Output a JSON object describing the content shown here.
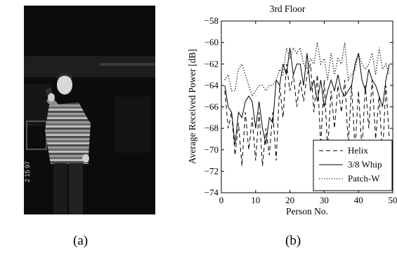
{
  "figure": {
    "caption_a": "(a)",
    "caption_b": "(b)",
    "photo_date_stamp": "2 15 97"
  },
  "chart_data": {
    "type": "line",
    "title": "3rd Floor",
    "xlabel": "Person No.",
    "ylabel": "Average Received Power [dB]",
    "xlim": [
      0,
      50
    ],
    "ylim": [
      -74,
      -58
    ],
    "xticks": [
      0,
      10,
      20,
      30,
      40,
      50
    ],
    "yticks": [
      -58,
      -60,
      -62,
      -64,
      -66,
      -68,
      -70,
      -72,
      -74
    ],
    "grid": false,
    "legend_position": "bottom-right",
    "series": [
      {
        "name": "Helix",
        "style": "dashed",
        "values": [
          [
            1,
            -64.5
          ],
          [
            2,
            -68
          ],
          [
            3,
            -66.5
          ],
          [
            4,
            -70.5
          ],
          [
            5,
            -67.5
          ],
          [
            6,
            -71.5
          ],
          [
            7,
            -66.5
          ],
          [
            8,
            -70
          ],
          [
            9,
            -67
          ],
          [
            10,
            -71
          ],
          [
            11,
            -66.5
          ],
          [
            12,
            -71.5
          ],
          [
            13,
            -68
          ],
          [
            14,
            -70.5
          ],
          [
            15,
            -66.5
          ],
          [
            16,
            -71
          ],
          [
            17,
            -64
          ],
          [
            18,
            -67
          ],
          [
            19,
            -62
          ],
          [
            20,
            -64.5
          ],
          [
            21,
            -63
          ],
          [
            22,
            -66
          ],
          [
            23,
            -63.5
          ],
          [
            24,
            -65.5
          ],
          [
            25,
            -63
          ],
          [
            26,
            -62
          ],
          [
            27,
            -66.5
          ],
          [
            28,
            -63
          ],
          [
            29,
            -69.5
          ],
          [
            30,
            -63.5
          ],
          [
            31,
            -70
          ],
          [
            32,
            -64.5
          ],
          [
            33,
            -68
          ],
          [
            34,
            -64
          ],
          [
            35,
            -66.5
          ],
          [
            36,
            -63.5
          ],
          [
            37,
            -69.5
          ],
          [
            38,
            -64
          ],
          [
            39,
            -70
          ],
          [
            40,
            -64.5
          ],
          [
            41,
            -70
          ],
          [
            42,
            -64
          ],
          [
            43,
            -68
          ],
          [
            44,
            -63.5
          ],
          [
            45,
            -69
          ],
          [
            46,
            -65
          ],
          [
            47,
            -70.5
          ],
          [
            48,
            -64
          ],
          [
            49,
            -69
          ]
        ]
      },
      {
        "name": "3/8 Whip",
        "style": "solid",
        "values": [
          [
            1,
            -64
          ],
          [
            2,
            -66
          ],
          [
            3,
            -66.5
          ],
          [
            4,
            -69.5
          ],
          [
            5,
            -66.5
          ],
          [
            6,
            -67
          ],
          [
            7,
            -65.5
          ],
          [
            8,
            -65
          ],
          [
            9,
            -65.5
          ],
          [
            10,
            -68
          ],
          [
            11,
            -65.5
          ],
          [
            12,
            -68
          ],
          [
            13,
            -69.5
          ],
          [
            14,
            -67
          ],
          [
            15,
            -67.5
          ],
          [
            16,
            -63.5
          ],
          [
            17,
            -64
          ],
          [
            18,
            -62
          ],
          [
            19,
            -63
          ],
          [
            20,
            -60.5
          ],
          [
            21,
            -63
          ],
          [
            22,
            -62
          ],
          [
            23,
            -62
          ],
          [
            24,
            -64
          ],
          [
            25,
            -61
          ],
          [
            26,
            -64.5
          ],
          [
            27,
            -63.5
          ],
          [
            28,
            -65.5
          ],
          [
            29,
            -63.5
          ],
          [
            30,
            -66
          ],
          [
            31,
            -64.5
          ],
          [
            32,
            -63.5
          ],
          [
            33,
            -64.5
          ],
          [
            34,
            -63
          ],
          [
            35,
            -64.5
          ],
          [
            36,
            -65
          ],
          [
            37,
            -64.5
          ],
          [
            38,
            -64
          ],
          [
            39,
            -62
          ],
          [
            40,
            -61
          ],
          [
            41,
            -63.5
          ],
          [
            42,
            -64.5
          ],
          [
            43,
            -62.5
          ],
          [
            44,
            -63.5
          ],
          [
            45,
            -64
          ],
          [
            46,
            -65
          ],
          [
            47,
            -66
          ],
          [
            48,
            -63.5
          ],
          [
            49,
            -62
          ]
        ]
      },
      {
        "name": "Patch-W",
        "style": "dotted",
        "values": [
          [
            1,
            -63.5
          ],
          [
            2,
            -63
          ],
          [
            3,
            -64.5
          ],
          [
            4,
            -64.5
          ],
          [
            5,
            -62.5
          ],
          [
            6,
            -62
          ],
          [
            7,
            -63
          ],
          [
            8,
            -64
          ],
          [
            9,
            -65
          ],
          [
            10,
            -64.5
          ],
          [
            11,
            -64
          ],
          [
            12,
            -64
          ],
          [
            13,
            -64.5
          ],
          [
            14,
            -64
          ],
          [
            15,
            -64
          ],
          [
            16,
            -63.5
          ],
          [
            17,
            -62.5
          ],
          [
            18,
            -63
          ],
          [
            19,
            -60.5
          ],
          [
            20,
            -61.5
          ],
          [
            21,
            -60.5
          ],
          [
            22,
            -61
          ],
          [
            23,
            -60.5
          ],
          [
            24,
            -62
          ],
          [
            25,
            -62.5
          ],
          [
            26,
            -61.5
          ],
          [
            27,
            -62
          ],
          [
            28,
            -60
          ],
          [
            29,
            -62
          ],
          [
            30,
            -61.5
          ],
          [
            31,
            -63.5
          ],
          [
            32,
            -61
          ],
          [
            33,
            -63
          ],
          [
            34,
            -61.5
          ],
          [
            35,
            -62
          ],
          [
            36,
            -60
          ],
          [
            37,
            -63.5
          ],
          [
            38,
            -63
          ],
          [
            39,
            -62.5
          ],
          [
            40,
            -61
          ],
          [
            41,
            -62
          ],
          [
            42,
            -62.5
          ],
          [
            43,
            -62
          ],
          [
            44,
            -61
          ],
          [
            45,
            -63
          ],
          [
            46,
            -60.5
          ],
          [
            47,
            -62.5
          ],
          [
            48,
            -62
          ],
          [
            49,
            -63
          ]
        ]
      }
    ]
  }
}
